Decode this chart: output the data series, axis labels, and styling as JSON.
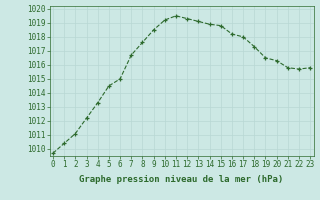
{
  "x": [
    0,
    1,
    2,
    3,
    4,
    5,
    6,
    7,
    8,
    9,
    10,
    11,
    12,
    13,
    14,
    15,
    16,
    17,
    18,
    19,
    20,
    21,
    22,
    23
  ],
  "y": [
    1009.7,
    1010.4,
    1011.1,
    1012.2,
    1013.3,
    1014.5,
    1015.0,
    1016.7,
    1017.6,
    1018.5,
    1019.2,
    1019.5,
    1019.3,
    1019.1,
    1018.9,
    1018.8,
    1018.2,
    1018.0,
    1017.3,
    1016.5,
    1016.3,
    1015.8,
    1015.7,
    1015.8
  ],
  "ylim": [
    1009.5,
    1020.2
  ],
  "yticks": [
    1010,
    1011,
    1012,
    1013,
    1014,
    1015,
    1016,
    1017,
    1018,
    1019,
    1020
  ],
  "xticks": [
    0,
    1,
    2,
    3,
    4,
    5,
    6,
    7,
    8,
    9,
    10,
    11,
    12,
    13,
    14,
    15,
    16,
    17,
    18,
    19,
    20,
    21,
    22,
    23
  ],
  "xlabel": "Graphe pression niveau de la mer (hPa)",
  "line_color": "#2d6a2d",
  "marker": "+",
  "marker_size": 3.5,
  "bg_color": "#cce8e4",
  "grid_color": "#b8d8d4",
  "axes_color": "#2d6a2d",
  "tick_color": "#2d6a2d",
  "label_color": "#2d6a2d",
  "xlabel_fontsize": 6.5,
  "tick_fontsize": 5.5
}
